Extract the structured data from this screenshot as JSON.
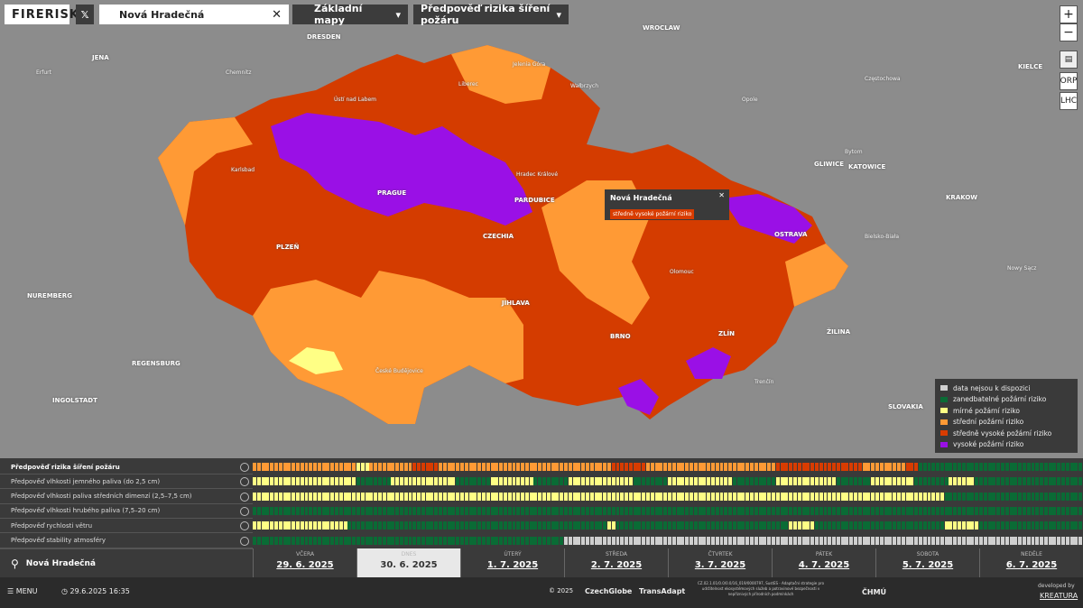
{
  "header": {
    "logo": "FIRERISK",
    "search": "Nová Hradečná",
    "basemap": "Základní mapy",
    "layer": "Předpověď rizika šíření požáru"
  },
  "map_controls": [
    "+",
    "−",
    "ORP",
    "LHC"
  ],
  "map_labels": [
    "DRESDEN",
    "WROCLAW",
    "Erfurt",
    "JENA",
    "Chemnitz",
    "Jelenia Góra",
    "Wałbrzych",
    "Liberec",
    "Ústí nad Labem",
    "Opole",
    "Częstochowa",
    "KIELCE",
    "Karlsbad",
    "Hradec Králové",
    "PRAGUE",
    "PARDUBICE",
    "Bytom",
    "GLIWICE",
    "KATOWICE",
    "KRAKOW",
    "CZECHIA",
    "PLZEŇ",
    "OSTRAVA",
    "Bielsko-Biała",
    "Olomouc",
    "Nowy Sącz",
    "NUREMBERG",
    "JIHLAVA",
    "BRNO",
    "ZLÍN",
    "ŽILINA",
    "REGENSBURG",
    "České Budějovice",
    "Trenčín",
    "INGOLSTADT",
    "SLOVAKIA"
  ],
  "popup": {
    "title": "Nová Hradečná",
    "status": "středně vysoké požární riziko"
  },
  "legend": [
    {
      "label": "data nejsou k dispozici",
      "color": "#cfcfcf"
    },
    {
      "label": "zanedbatelné požární riziko",
      "color": "#0a6b35"
    },
    {
      "label": "mírné požární riziko",
      "color": "#ffff85"
    },
    {
      "label": "střední požární riziko",
      "color": "#ff9a35"
    },
    {
      "label": "středně vysoké požární riziko",
      "color": "#d83c00"
    },
    {
      "label": "vysoké požární riziko",
      "color": "#9a10e6"
    }
  ],
  "timeline": {
    "rows": [
      {
        "label": "Předpověď rizika šíření požáru",
        "segments": [
          [
            3,
            24
          ],
          [
            2,
            3
          ],
          [
            3,
            10
          ],
          [
            4,
            6
          ],
          [
            3,
            40
          ],
          [
            4,
            8
          ],
          [
            3,
            30
          ],
          [
            4,
            20
          ],
          [
            3,
            10
          ],
          [
            4,
            3
          ],
          [
            1,
            38
          ]
        ]
      },
      {
        "label": "Předpověď vlhkosti jemného paliva (do 2,5 cm)",
        "segments": [
          [
            2,
            24
          ],
          [
            1,
            8
          ],
          [
            2,
            15
          ],
          [
            1,
            8
          ],
          [
            2,
            10
          ],
          [
            1,
            8
          ],
          [
            2,
            15
          ],
          [
            1,
            8
          ],
          [
            2,
            15
          ],
          [
            1,
            10
          ],
          [
            2,
            14
          ],
          [
            1,
            8
          ],
          [
            2,
            10
          ],
          [
            1,
            8
          ],
          [
            2,
            6
          ],
          [
            1,
            25
          ]
        ]
      },
      {
        "label": "Předpověď vlhkosti paliva středních dimenzí (2,5–7,5 cm)",
        "segments": [
          [
            2,
            160
          ],
          [
            1,
            32
          ]
        ]
      },
      {
        "label": "Předpověď vlhkosti hrubého paliva (7,5–20 cm)",
        "segments": [
          [
            1,
            192
          ]
        ]
      },
      {
        "label": "Předpověď rychlosti větru",
        "segments": [
          [
            2,
            22
          ],
          [
            1,
            60
          ],
          [
            2,
            2
          ],
          [
            1,
            40
          ],
          [
            2,
            6
          ],
          [
            1,
            30
          ],
          [
            2,
            8
          ],
          [
            1,
            24
          ]
        ]
      },
      {
        "label": "Předpověď stability atmosféry",
        "segments": [
          [
            1,
            72
          ],
          [
            0,
            120
          ]
        ]
      }
    ],
    "days": [
      {
        "name": "VČERA",
        "date": "29. 6. 2025"
      },
      {
        "name": "DNES",
        "date": "30. 6. 2025"
      },
      {
        "name": "ÚTERÝ",
        "date": "1. 7. 2025"
      },
      {
        "name": "STŘEDA",
        "date": "2. 7. 2025"
      },
      {
        "name": "ČTVRTEK",
        "date": "3. 7. 2025"
      },
      {
        "name": "PÁTEK",
        "date": "4. 7. 2025"
      },
      {
        "name": "SOBOTA",
        "date": "5. 7. 2025"
      },
      {
        "name": "NEDĚLE",
        "date": "6. 7. 2025"
      }
    ],
    "location": "Nová Hradečná"
  },
  "footer": {
    "menu": "MENU",
    "datetime": "29.6.2025 16:35",
    "copyright": "© 2025",
    "partners": [
      "CzechGlobe",
      "TransAdapt"
    ],
    "project": "CZ.02.1.01/0.0/0.0/16_019/0000797, SustES - Adaptační strategie pro udržitelnost ekosystémových služeb a potravinové bezpečnosti v nepříznivých přírodních podmínkách",
    "logo": "ČHMÚ",
    "developed": "developed by",
    "developer": "KREATURA"
  }
}
